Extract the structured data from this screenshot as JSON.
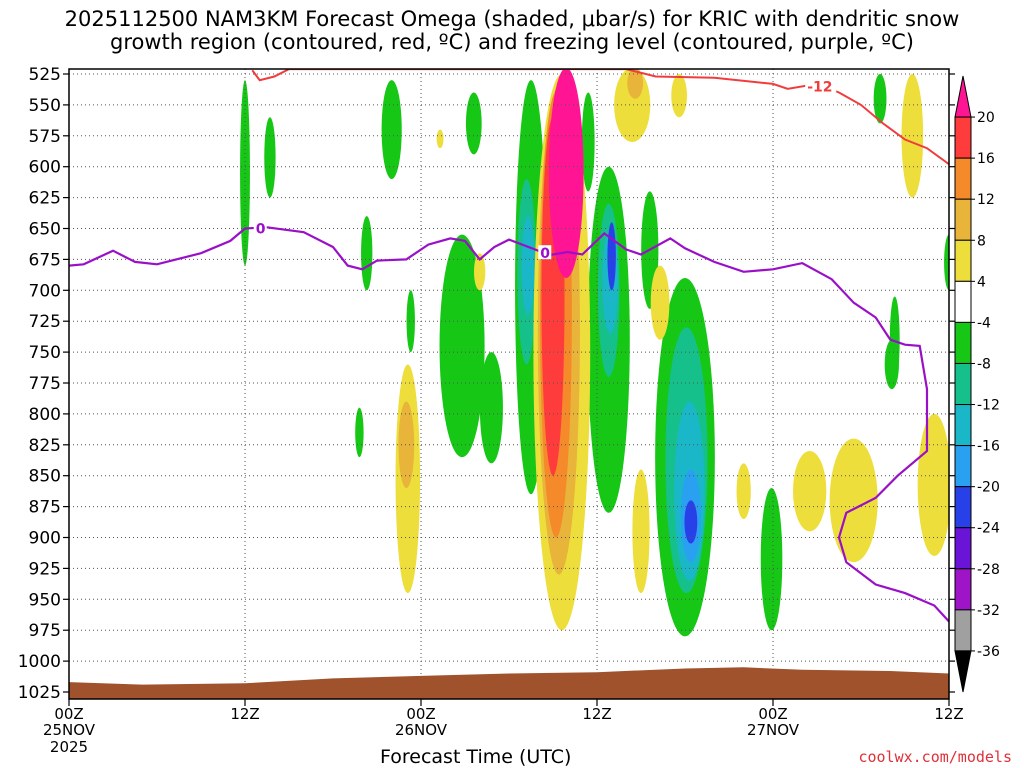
{
  "chart_data": {
    "type": "heatmap",
    "title_line1": "2025112500 NAM3KM Forecast Omega (shaded, μbar/s) for KRIC with dendritic snow",
    "title_line2": "growth region (contoured, red, ºC) and freezing level (contoured, purple, ºC)",
    "xlabel": "Forecast Time (UTC)",
    "ylabel": "",
    "x_ticks": [
      {
        "hour": 0,
        "label": "00Z",
        "sub1": "25NOV",
        "sub2": "2025"
      },
      {
        "hour": 12,
        "label": "12Z",
        "sub1": "",
        "sub2": ""
      },
      {
        "hour": 24,
        "label": "00Z",
        "sub1": "26NOV",
        "sub2": ""
      },
      {
        "hour": 36,
        "label": "12Z",
        "sub1": "",
        "sub2": ""
      },
      {
        "hour": 48,
        "label": "00Z",
        "sub1": "27NOV",
        "sub2": ""
      },
      {
        "hour": 60,
        "label": "12Z",
        "sub1": "",
        "sub2": ""
      }
    ],
    "x_range_hours": [
      0,
      60
    ],
    "pressure_levels_mb": [
      525,
      550,
      575,
      600,
      625,
      650,
      675,
      700,
      725,
      750,
      775,
      800,
      825,
      850,
      875,
      900,
      925,
      950,
      975,
      1000,
      1025
    ],
    "colorbar": {
      "labels": [
        "20",
        "16",
        "12",
        "8",
        "4",
        "-4",
        "-8",
        "-12",
        "-16",
        "-20",
        "-24",
        "-28",
        "-32",
        "-36"
      ],
      "colors": [
        "#ff1493",
        "#ff3c3c",
        "#f58a2a",
        "#e8b43a",
        "#eede3c",
        "#ffffff",
        "#16c716",
        "#16c08a",
        "#19b7c8",
        "#2aa0f0",
        "#2840e8",
        "#6a14d8",
        "#a014c8",
        "#a0a0a0",
        "#000000"
      ]
    },
    "contours": {
      "dgz_label": "-12",
      "freezing_label": "0"
    },
    "freezing_level": [
      {
        "h": 0,
        "p": 680
      },
      {
        "h": 1,
        "p": 679
      },
      {
        "h": 3,
        "p": 668
      },
      {
        "h": 4.5,
        "p": 677
      },
      {
        "h": 6,
        "p": 679
      },
      {
        "h": 7,
        "p": 676
      },
      {
        "h": 9,
        "p": 670
      },
      {
        "h": 11,
        "p": 660
      },
      {
        "h": 12,
        "p": 650
      },
      {
        "h": 13.5,
        "p": 649
      },
      {
        "h": 16,
        "p": 653
      },
      {
        "h": 18,
        "p": 665
      },
      {
        "h": 19,
        "p": 680
      },
      {
        "h": 20,
        "p": 683
      },
      {
        "h": 21,
        "p": 676
      },
      {
        "h": 23,
        "p": 675
      },
      {
        "h": 24.5,
        "p": 663
      },
      {
        "h": 26,
        "p": 658
      },
      {
        "h": 27,
        "p": 660
      },
      {
        "h": 28,
        "p": 675
      },
      {
        "h": 29,
        "p": 665
      },
      {
        "h": 30,
        "p": 659
      },
      {
        "h": 32,
        "p": 668
      },
      {
        "h": 32.5,
        "p": 672
      },
      {
        "h": 34,
        "p": 669
      },
      {
        "h": 35,
        "p": 671
      },
      {
        "h": 36.5,
        "p": 654
      },
      {
        "h": 38,
        "p": 667
      },
      {
        "h": 39,
        "p": 671
      },
      {
        "h": 41,
        "p": 658
      },
      {
        "h": 42,
        "p": 666
      },
      {
        "h": 44,
        "p": 677
      },
      {
        "h": 46,
        "p": 685
      },
      {
        "h": 48,
        "p": 683
      },
      {
        "h": 50,
        "p": 678
      },
      {
        "h": 52,
        "p": 691
      },
      {
        "h": 53.5,
        "p": 710
      },
      {
        "h": 55,
        "p": 722
      },
      {
        "h": 56,
        "p": 740
      },
      {
        "h": 57,
        "p": 744
      },
      {
        "h": 58,
        "p": 745
      },
      {
        "h": 58.5,
        "p": 780
      },
      {
        "h": 58.5,
        "p": 830
      },
      {
        "h": 56.5,
        "p": 850
      },
      {
        "h": 55,
        "p": 868
      },
      {
        "h": 53,
        "p": 880
      },
      {
        "h": 52.5,
        "p": 900
      },
      {
        "h": 53,
        "p": 920
      },
      {
        "h": 55,
        "p": 938
      },
      {
        "h": 57,
        "p": 945
      },
      {
        "h": 59,
        "p": 955
      },
      {
        "h": 60,
        "p": 968
      }
    ],
    "dgz_contour": [
      {
        "h": 12.5,
        "p": 522
      },
      {
        "h": 13,
        "p": 530
      },
      {
        "h": 14,
        "p": 527
      },
      {
        "h": 15,
        "p": 521
      },
      {
        "h": 21,
        "p": 521
      },
      {
        "h": 24,
        "p": 521
      },
      {
        "h": 38,
        "p": 521
      },
      {
        "h": 40,
        "p": 527
      },
      {
        "h": 44,
        "p": 528
      },
      {
        "h": 48,
        "p": 533
      },
      {
        "h": 49,
        "p": 537
      },
      {
        "h": 51,
        "p": 533
      },
      {
        "h": 52.5,
        "p": 540
      },
      {
        "h": 54,
        "p": 550
      },
      {
        "h": 55.5,
        "p": 565
      },
      {
        "h": 57,
        "p": 578
      },
      {
        "h": 58.5,
        "p": 585
      },
      {
        "h": 60,
        "p": 598
      }
    ],
    "omega_regions": [
      {
        "level": -8,
        "h": 12.0,
        "p1": 530,
        "p2": 680,
        "w": 0.4
      },
      {
        "level": -8,
        "h": 13.7,
        "p1": 560,
        "p2": 625,
        "w": 0.5
      },
      {
        "level": -8,
        "h": 22.0,
        "p1": 530,
        "p2": 610,
        "w": 1.1
      },
      {
        "level": -8,
        "h": 20.3,
        "p1": 640,
        "p2": 700,
        "w": 0.5
      },
      {
        "level": -8,
        "h": 19.8,
        "p1": 795,
        "p2": 835,
        "w": 0.3
      },
      {
        "level": -8,
        "h": 23.3,
        "p1": 700,
        "p2": 750,
        "w": 0.3
      },
      {
        "level": -8,
        "h": 27.6,
        "p1": 540,
        "p2": 590,
        "w": 0.8
      },
      {
        "level": -8,
        "h": 26.8,
        "p1": 655,
        "p2": 835,
        "w": 2.8
      },
      {
        "level": -8,
        "h": 28.8,
        "p1": 750,
        "p2": 840,
        "w": 1.3
      },
      {
        "level": -8,
        "h": 31.5,
        "p1": 530,
        "p2": 865,
        "w": 1.9
      },
      {
        "level": -8,
        "h": 34.6,
        "p1": 640,
        "p2": 805,
        "w": 1.2
      },
      {
        "level": -8,
        "h": 35.4,
        "p1": 540,
        "p2": 620,
        "w": 0.6
      },
      {
        "level": -8,
        "h": 36.8,
        "p1": 600,
        "p2": 880,
        "w": 2.6
      },
      {
        "level": -8,
        "h": 39.6,
        "p1": 620,
        "p2": 715,
        "w": 0.9
      },
      {
        "level": -8,
        "h": 42.0,
        "p1": 690,
        "p2": 980,
        "w": 3.8
      },
      {
        "level": -8,
        "h": 47.9,
        "p1": 860,
        "p2": 975,
        "w": 1.2
      },
      {
        "level": -8,
        "h": 55.3,
        "p1": 525,
        "p2": 565,
        "w": 0.6
      },
      {
        "level": -8,
        "h": 56.3,
        "p1": 705,
        "p2": 775,
        "w": 0.4
      },
      {
        "level": -8,
        "h": 56.1,
        "p1": 740,
        "p2": 780,
        "w": 0.7
      },
      {
        "level": -8,
        "h": 60.0,
        "p1": 655,
        "p2": 700,
        "w": 0.4
      },
      {
        "level": -12,
        "h": 31.2,
        "p1": 610,
        "p2": 760,
        "w": 1.0
      },
      {
        "level": -12,
        "h": 36.8,
        "p1": 630,
        "p2": 770,
        "w": 1.2
      },
      {
        "level": -12,
        "h": 42.1,
        "p1": 730,
        "p2": 945,
        "w": 2.6
      },
      {
        "level": -16,
        "h": 31.3,
        "p1": 640,
        "p2": 720,
        "w": 0.6
      },
      {
        "level": -16,
        "h": 36.9,
        "p1": 650,
        "p2": 735,
        "w": 0.8
      },
      {
        "level": -16,
        "h": 42.3,
        "p1": 790,
        "p2": 935,
        "w": 1.8
      },
      {
        "level": -20,
        "h": 42.4,
        "p1": 845,
        "p2": 920,
        "w": 1.1
      },
      {
        "level": -24,
        "h": 42.4,
        "p1": 870,
        "p2": 905,
        "w": 0.6
      },
      {
        "level": -24,
        "h": 37.0,
        "p1": 645,
        "p2": 700,
        "w": 0.3
      },
      {
        "level": 4,
        "h": 23.1,
        "p1": 760,
        "p2": 945,
        "w": 1.4
      },
      {
        "level": 4,
        "h": 25.3,
        "p1": 570,
        "p2": 585,
        "w": 0.2
      },
      {
        "level": 4,
        "h": 28.0,
        "p1": 670,
        "p2": 700,
        "w": 0.5
      },
      {
        "level": 4,
        "h": 33.6,
        "p1": 525,
        "p2": 975,
        "w": 3.6
      },
      {
        "level": 4,
        "h": 38.4,
        "p1": 520,
        "p2": 580,
        "w": 2.2
      },
      {
        "level": 4,
        "h": 39.0,
        "p1": 845,
        "p2": 945,
        "w": 0.9
      },
      {
        "level": 4,
        "h": 40.3,
        "p1": 680,
        "p2": 740,
        "w": 1.0
      },
      {
        "level": 4,
        "h": 41.6,
        "p1": 525,
        "p2": 560,
        "w": 0.8
      },
      {
        "level": 4,
        "h": 46.0,
        "p1": 840,
        "p2": 885,
        "w": 0.7
      },
      {
        "level": 4,
        "h": 57.5,
        "p1": 525,
        "p2": 625,
        "w": 1.2
      },
      {
        "level": 4,
        "h": 50.5,
        "p1": 830,
        "p2": 895,
        "w": 2.0
      },
      {
        "level": 4,
        "h": 53.5,
        "p1": 820,
        "p2": 920,
        "w": 3.0
      },
      {
        "level": 4,
        "h": 59.0,
        "p1": 800,
        "p2": 915,
        "w": 2.0
      },
      {
        "level": 8,
        "h": 23.0,
        "p1": 790,
        "p2": 860,
        "w": 0.8
      },
      {
        "level": 8,
        "h": 33.4,
        "p1": 535,
        "p2": 930,
        "w": 2.6
      },
      {
        "level": 8,
        "h": 38.6,
        "p1": 520,
        "p2": 545,
        "w": 0.8
      },
      {
        "level": 12,
        "h": 33.2,
        "p1": 540,
        "p2": 900,
        "w": 1.9
      },
      {
        "level": 16,
        "h": 33.0,
        "p1": 560,
        "p2": 850,
        "w": 1.3
      },
      {
        "level": 20,
        "h": 33.9,
        "p1": 520,
        "p2": 690,
        "w": 2.1
      }
    ],
    "terrain_pressure": [
      {
        "h": 0,
        "p": 1017
      },
      {
        "h": 5,
        "p": 1019
      },
      {
        "h": 12,
        "p": 1018
      },
      {
        "h": 18,
        "p": 1014
      },
      {
        "h": 24,
        "p": 1012
      },
      {
        "h": 30,
        "p": 1010
      },
      {
        "h": 36,
        "p": 1009
      },
      {
        "h": 42,
        "p": 1006
      },
      {
        "h": 46,
        "p": 1005
      },
      {
        "h": 50,
        "p": 1007
      },
      {
        "h": 56,
        "p": 1008
      },
      {
        "h": 60,
        "p": 1010
      }
    ]
  },
  "footer": {
    "credit": "coolwx.com/models"
  }
}
